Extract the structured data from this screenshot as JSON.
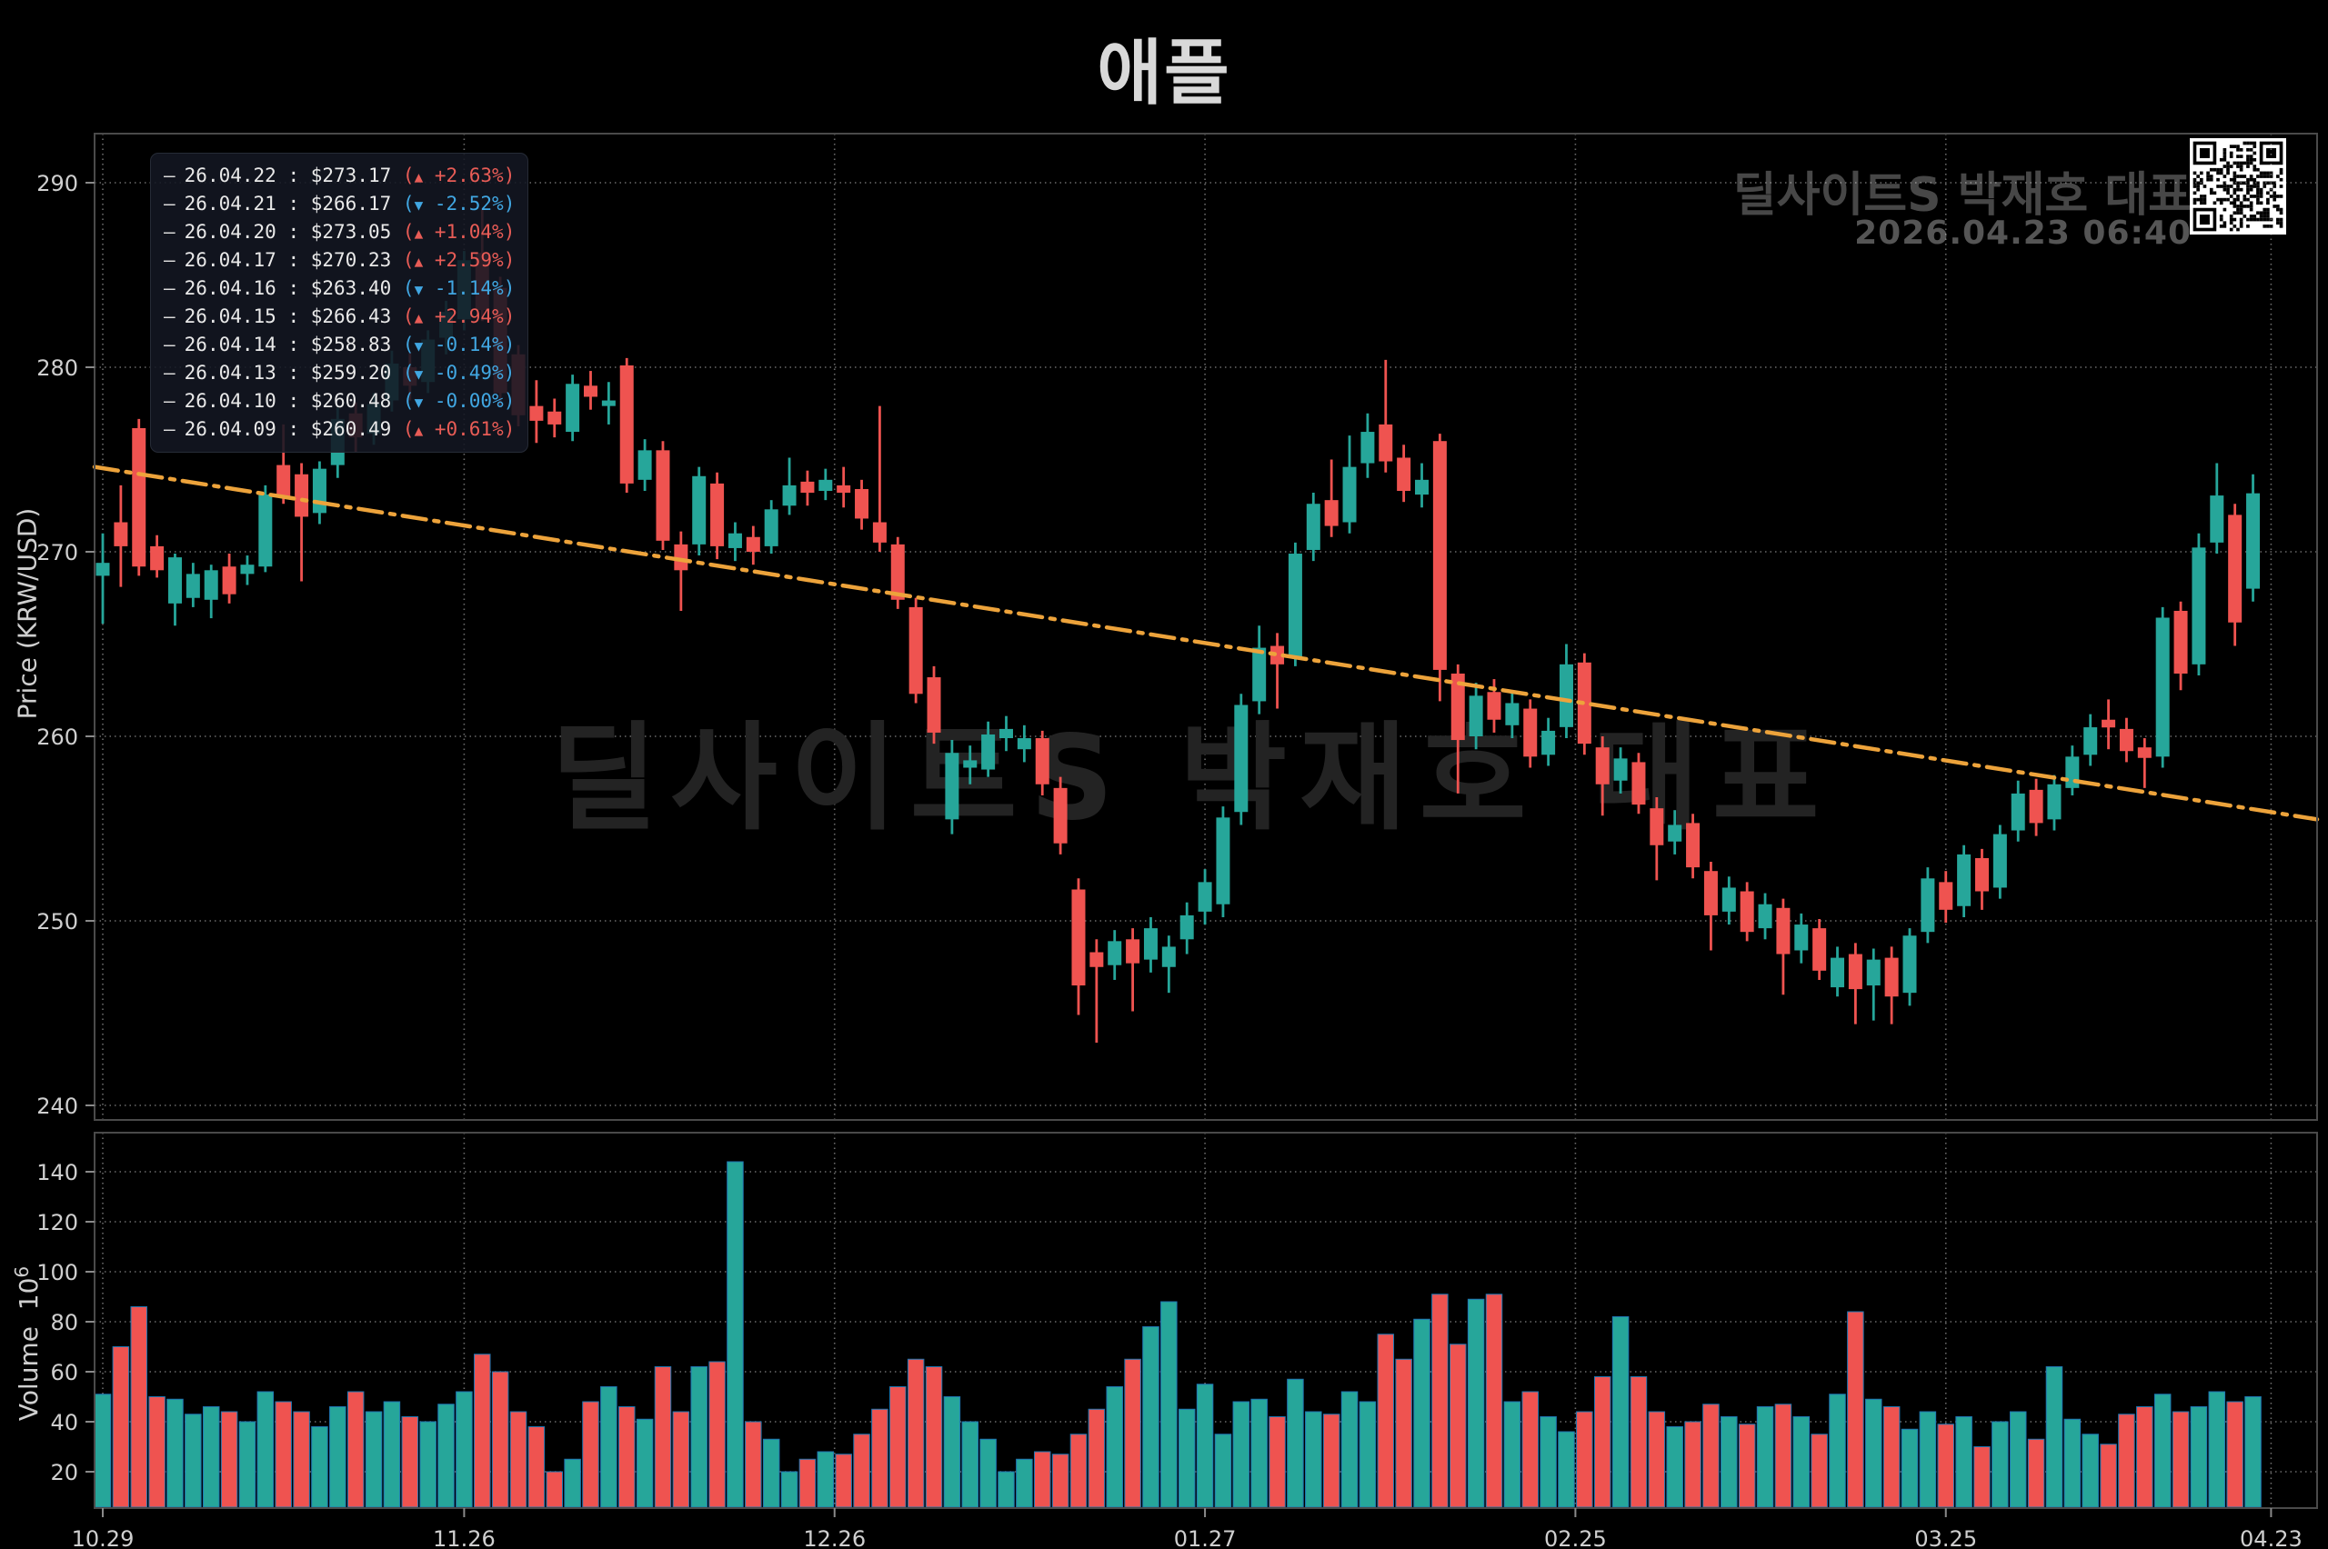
{
  "title": "애플",
  "branding": {
    "watermark_top_right": "딜사이트S 박재호 대표",
    "timestamp": "2026.04.23 06:40",
    "center_watermark": "딜사이트S 박재호 대표"
  },
  "axes": {
    "price_label": "Price (KRW/USD)",
    "volume_label": "Volume",
    "volume_base": "10",
    "volume_exp": "6"
  },
  "legend": {
    "items": [
      {
        "date": "26.04.22",
        "price": "$273.17",
        "dir": "up",
        "pct": "+2.63%"
      },
      {
        "date": "26.04.21",
        "price": "$266.17",
        "dir": "down",
        "pct": "-2.52%"
      },
      {
        "date": "26.04.20",
        "price": "$273.05",
        "dir": "up",
        "pct": "+1.04%"
      },
      {
        "date": "26.04.17",
        "price": "$270.23",
        "dir": "up",
        "pct": "+2.59%"
      },
      {
        "date": "26.04.16",
        "price": "$263.40",
        "dir": "down",
        "pct": "-1.14%"
      },
      {
        "date": "26.04.15",
        "price": "$266.43",
        "dir": "up",
        "pct": "+2.94%"
      },
      {
        "date": "26.04.14",
        "price": "$258.83",
        "dir": "down",
        "pct": "-0.14%"
      },
      {
        "date": "26.04.13",
        "price": "$259.20",
        "dir": "down",
        "pct": "-0.49%"
      },
      {
        "date": "26.04.10",
        "price": "$260.48",
        "dir": "down",
        "pct": "-0.00%"
      },
      {
        "date": "26.04.09",
        "price": "$260.49",
        "dir": "up",
        "pct": "+0.61%"
      }
    ]
  },
  "colors": {
    "up": "#26a69a",
    "down": "#ef5350",
    "trend": "#eda33b",
    "pct_up": "#e85c56",
    "pct_down": "#41a7e2",
    "volume_edge": "#1f77b4",
    "grid": "rgba(255,255,255,0.42)",
    "spine": "#4a4a4a",
    "tick_label": "#cfcfcf",
    "watermark": "#232323"
  },
  "chart_data": {
    "type": "candlestick+volume",
    "title": "애플",
    "ylabel_price": "Price (KRW/USD)",
    "ylabel_volume": "Volume 10^6",
    "x_ticks": [
      "10.29",
      "11.26",
      "12.26",
      "01.27",
      "02.25",
      "03.25",
      "04.23"
    ],
    "x_tick_indices": [
      0,
      20,
      40.5,
      61,
      81.5,
      102,
      120
    ],
    "price_ticks": [
      240,
      250,
      260,
      270,
      280,
      290
    ],
    "price_ylim": [
      239.2,
      292.7
    ],
    "volume_ticks": [
      20,
      40,
      60,
      80,
      100,
      120,
      140
    ],
    "volume_ylim": [
      0,
      156
    ],
    "grid": "dotted",
    "trend_line": {
      "style": "dashdot",
      "start_price": 274.6,
      "end_price": 255.5
    },
    "candles_format": [
      "open",
      "high",
      "low",
      "close",
      "volume_millions"
    ],
    "candles": [
      [
        268.7,
        271.0,
        266.1,
        269.4,
        51
      ],
      [
        271.6,
        273.6,
        268.1,
        270.3,
        70
      ],
      [
        276.7,
        277.2,
        268.7,
        269.2,
        86
      ],
      [
        270.3,
        270.9,
        268.6,
        269.0,
        50
      ],
      [
        267.2,
        269.9,
        266.0,
        269.7,
        49
      ],
      [
        267.5,
        269.4,
        267.0,
        268.8,
        43
      ],
      [
        267.4,
        269.3,
        266.4,
        269.0,
        46
      ],
      [
        269.2,
        269.9,
        267.2,
        267.7,
        44
      ],
      [
        268.8,
        269.8,
        268.2,
        269.3,
        40
      ],
      [
        269.2,
        273.6,
        268.9,
        273.1,
        52
      ],
      [
        274.7,
        276.9,
        272.6,
        273.0,
        48
      ],
      [
        274.2,
        274.8,
        268.4,
        271.9,
        44
      ],
      [
        272.1,
        274.9,
        271.5,
        274.5,
        38
      ],
      [
        274.7,
        277.8,
        274.0,
        277.2,
        46
      ],
      [
        277.5,
        278.1,
        275.4,
        276.2,
        52
      ],
      [
        276.4,
        278.6,
        275.8,
        278.0,
        44
      ],
      [
        278.2,
        280.9,
        277.6,
        280.2,
        48
      ],
      [
        280.0,
        280.8,
        278.2,
        279.0,
        42
      ],
      [
        279.2,
        282.0,
        278.6,
        281.5,
        40
      ],
      [
        281.6,
        283.6,
        280.7,
        283.0,
        47
      ],
      [
        282.6,
        286.3,
        282.0,
        285.8,
        52
      ],
      [
        286.2,
        288.6,
        282.5,
        283.1,
        67
      ],
      [
        284.3,
        284.9,
        277.9,
        278.6,
        60
      ],
      [
        280.7,
        281.2,
        276.8,
        277.4,
        44
      ],
      [
        277.9,
        279.3,
        275.9,
        277.1,
        38
      ],
      [
        277.6,
        278.3,
        276.2,
        276.9,
        20
      ],
      [
        276.5,
        279.6,
        276.0,
        279.1,
        25
      ],
      [
        279.0,
        279.8,
        277.7,
        278.4,
        48
      ],
      [
        277.9,
        279.2,
        276.9,
        278.2,
        54
      ],
      [
        280.1,
        280.5,
        273.2,
        273.7,
        46
      ],
      [
        273.9,
        276.1,
        273.3,
        275.5,
        41
      ],
      [
        275.5,
        276.0,
        270.1,
        270.6,
        62
      ],
      [
        270.4,
        271.1,
        266.8,
        269.0,
        44
      ],
      [
        270.4,
        274.6,
        269.8,
        274.1,
        62
      ],
      [
        273.7,
        274.3,
        269.6,
        270.3,
        64
      ],
      [
        270.2,
        271.6,
        269.5,
        271.0,
        144
      ],
      [
        270.8,
        271.4,
        269.3,
        270.0,
        40
      ],
      [
        270.3,
        272.8,
        269.9,
        272.3,
        33
      ],
      [
        272.5,
        275.1,
        272.0,
        273.6,
        20
      ],
      [
        273.8,
        274.4,
        272.5,
        273.2,
        25
      ],
      [
        273.3,
        274.5,
        272.8,
        273.9,
        28
      ],
      [
        273.6,
        274.6,
        272.4,
        273.2,
        27
      ],
      [
        273.4,
        273.9,
        271.2,
        271.8,
        35
      ],
      [
        271.6,
        277.9,
        270.0,
        270.5,
        45
      ],
      [
        270.4,
        270.8,
        266.9,
        267.4,
        54
      ],
      [
        267.0,
        267.5,
        261.8,
        262.3,
        65
      ],
      [
        263.2,
        263.8,
        259.6,
        260.2,
        62
      ],
      [
        255.5,
        259.8,
        254.7,
        259.1,
        50
      ],
      [
        258.3,
        259.5,
        257.4,
        258.7,
        40
      ],
      [
        258.2,
        260.8,
        257.8,
        260.1,
        33
      ],
      [
        259.9,
        261.1,
        259.2,
        260.4,
        20
      ],
      [
        259.3,
        260.6,
        258.6,
        259.9,
        25
      ],
      [
        259.9,
        260.3,
        256.8,
        257.4,
        28
      ],
      [
        257.2,
        257.8,
        253.6,
        254.2,
        27
      ],
      [
        251.7,
        252.3,
        244.9,
        246.5,
        35
      ],
      [
        248.3,
        249.0,
        243.4,
        247.5,
        45
      ],
      [
        247.6,
        249.5,
        246.8,
        248.9,
        54
      ],
      [
        249.0,
        249.6,
        245.1,
        247.7,
        65
      ],
      [
        247.9,
        250.2,
        247.2,
        249.6,
        78
      ],
      [
        247.5,
        249.2,
        246.1,
        248.6,
        88
      ],
      [
        249.0,
        251.0,
        248.2,
        250.3,
        45
      ],
      [
        250.5,
        252.8,
        249.8,
        252.1,
        55
      ],
      [
        250.9,
        256.2,
        250.2,
        255.6,
        35
      ],
      [
        255.9,
        262.3,
        255.2,
        261.7,
        48
      ],
      [
        261.9,
        266.0,
        261.2,
        264.8,
        49
      ],
      [
        264.9,
        265.6,
        261.5,
        263.9,
        42
      ],
      [
        264.3,
        270.5,
        263.8,
        269.9,
        57
      ],
      [
        270.1,
        273.2,
        269.5,
        272.6,
        44
      ],
      [
        272.8,
        275.0,
        270.8,
        271.4,
        43
      ],
      [
        271.6,
        276.3,
        271.0,
        274.6,
        52
      ],
      [
        274.8,
        277.5,
        274.0,
        276.5,
        48
      ],
      [
        276.9,
        280.4,
        274.3,
        274.9,
        75
      ],
      [
        275.1,
        275.8,
        272.7,
        273.3,
        65
      ],
      [
        273.1,
        274.8,
        272.4,
        273.9,
        81
      ],
      [
        276.0,
        276.4,
        261.9,
        263.6,
        91
      ],
      [
        263.4,
        263.9,
        256.9,
        259.8,
        71
      ],
      [
        260.0,
        262.9,
        259.3,
        262.2,
        89
      ],
      [
        262.4,
        263.1,
        260.2,
        260.9,
        91
      ],
      [
        260.6,
        262.4,
        259.9,
        261.8,
        48
      ],
      [
        261.5,
        262.0,
        258.3,
        258.9,
        52
      ],
      [
        259.0,
        261.0,
        258.4,
        260.3,
        42
      ],
      [
        260.5,
        265.0,
        259.9,
        263.9,
        36
      ],
      [
        264.0,
        264.5,
        259.0,
        259.6,
        44
      ],
      [
        259.4,
        260.0,
        255.7,
        257.4,
        58
      ],
      [
        257.6,
        259.4,
        256.9,
        258.8,
        82
      ],
      [
        258.6,
        259.1,
        255.8,
        256.3,
        58
      ],
      [
        256.1,
        256.7,
        252.2,
        254.1,
        44
      ],
      [
        254.3,
        256.0,
        253.6,
        255.2,
        38
      ],
      [
        255.3,
        255.8,
        252.3,
        252.9,
        40
      ],
      [
        252.7,
        253.2,
        248.4,
        250.3,
        47
      ],
      [
        250.5,
        252.4,
        249.8,
        251.8,
        42
      ],
      [
        251.6,
        252.1,
        248.9,
        249.4,
        39
      ],
      [
        249.6,
        251.5,
        249.0,
        250.9,
        46
      ],
      [
        250.7,
        251.2,
        246.0,
        248.2,
        47
      ],
      [
        248.4,
        250.4,
        247.7,
        249.8,
        42
      ],
      [
        249.6,
        250.1,
        246.8,
        247.3,
        35
      ],
      [
        246.4,
        248.6,
        245.9,
        248.0,
        51
      ],
      [
        248.2,
        248.8,
        244.4,
        246.3,
        84
      ],
      [
        246.5,
        248.5,
        244.6,
        247.9,
        49
      ],
      [
        248.0,
        248.6,
        244.4,
        245.9,
        46
      ],
      [
        246.1,
        249.6,
        245.4,
        249.2,
        37
      ],
      [
        249.4,
        252.9,
        248.8,
        252.3,
        44
      ],
      [
        252.1,
        252.7,
        249.9,
        250.6,
        39
      ],
      [
        250.8,
        254.1,
        250.2,
        253.6,
        42
      ],
      [
        253.4,
        253.9,
        250.6,
        251.6,
        30
      ],
      [
        251.8,
        255.2,
        251.2,
        254.7,
        40
      ],
      [
        254.9,
        257.6,
        254.3,
        256.9,
        44
      ],
      [
        257.1,
        257.7,
        254.6,
        255.3,
        33
      ],
      [
        255.5,
        257.9,
        254.9,
        257.4,
        62
      ],
      [
        257.2,
        259.5,
        256.8,
        258.9,
        41
      ],
      [
        259.0,
        261.2,
        258.4,
        260.49,
        35
      ],
      [
        260.9,
        262.0,
        259.3,
        260.48,
        31
      ],
      [
        260.4,
        261.0,
        258.6,
        259.2,
        43
      ],
      [
        259.4,
        259.9,
        257.2,
        258.83,
        46
      ],
      [
        258.9,
        267.0,
        258.3,
        266.43,
        51
      ],
      [
        266.8,
        267.3,
        262.5,
        263.4,
        44
      ],
      [
        263.9,
        271.0,
        263.3,
        270.23,
        46
      ],
      [
        270.5,
        274.8,
        269.9,
        273.05,
        52
      ],
      [
        272.0,
        272.6,
        264.9,
        266.17,
        48
      ],
      [
        268.0,
        274.2,
        267.3,
        273.17,
        50
      ]
    ]
  }
}
